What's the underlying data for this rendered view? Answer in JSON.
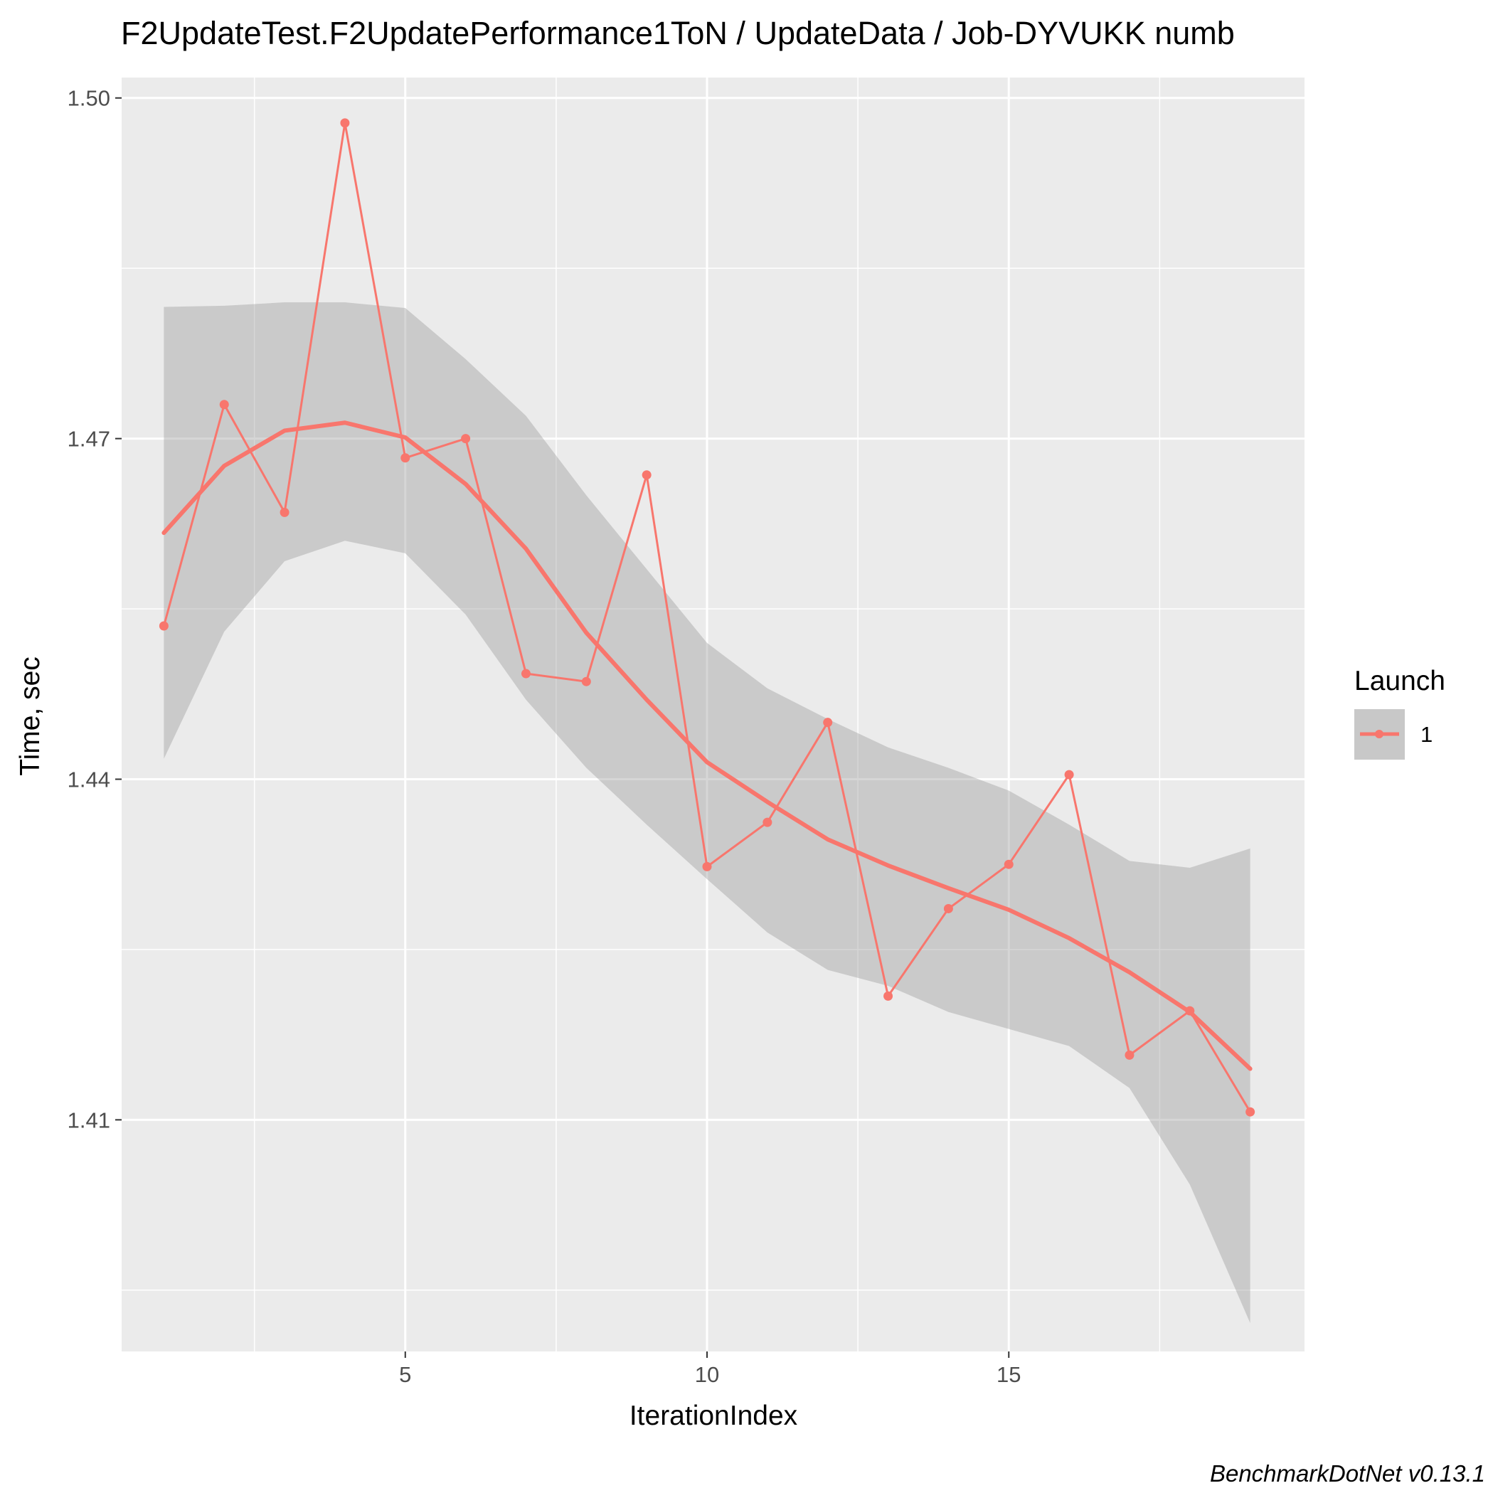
{
  "chart_data": {
    "type": "line",
    "title": "F2UpdateTest.F2UpdatePerformance1ToN / UpdateData / Job-DYVUKK numb",
    "xlabel": "IterationIndex",
    "ylabel": "Time, sec",
    "caption": "BenchmarkDotNet v0.13.1",
    "xlim": [
      0.3,
      19.9
    ],
    "ylim": [
      1.3896,
      1.5018
    ],
    "x_ticks": [
      5,
      10,
      15
    ],
    "x_tick_labels": [
      "5",
      "10",
      "15"
    ],
    "y_ticks": [
      1.41,
      1.44,
      1.47,
      1.5
    ],
    "y_tick_labels": [
      "1.41",
      "1.44",
      "1.47",
      "1.50"
    ],
    "grid": true,
    "legend": {
      "title": "Launch",
      "placement": "right",
      "entries": [
        "1"
      ]
    },
    "colors": {
      "series": "#f8766d",
      "band": "#c8c8c8",
      "panel": "#ebebeb",
      "grid": "#ffffff"
    },
    "series": [
      {
        "name": "1",
        "x": [
          1,
          2,
          3,
          4,
          5,
          6,
          7,
          8,
          9,
          10,
          11,
          12,
          13,
          14,
          15,
          16,
          17,
          18,
          19
        ],
        "values": [
          1.4535,
          1.473,
          1.4635,
          1.4978,
          1.4683,
          1.47,
          1.4493,
          1.4486,
          1.4668,
          1.4323,
          1.4362,
          1.445,
          1.4209,
          1.4286,
          1.4325,
          1.4404,
          1.4157,
          1.4196,
          1.4107
        ]
      }
    ],
    "smooth": {
      "x": [
        1,
        2,
        3,
        4,
        5,
        6,
        7,
        8,
        9,
        10,
        11,
        12,
        13,
        14,
        15,
        16,
        17,
        18,
        19
      ],
      "values": [
        1.4617,
        1.4676,
        1.4707,
        1.4714,
        1.4701,
        1.466,
        1.4603,
        1.4529,
        1.447,
        1.4415,
        1.438,
        1.4347,
        1.4324,
        1.4304,
        1.4285,
        1.426,
        1.423,
        1.4195,
        1.4145
      ],
      "lower": [
        1.4418,
        1.453,
        1.4592,
        1.461,
        1.4599,
        1.4545,
        1.447,
        1.441,
        1.436,
        1.4312,
        1.4265,
        1.4232,
        1.4218,
        1.4195,
        1.418,
        1.4165,
        1.4128,
        1.4043,
        1.3921
      ],
      "upper": [
        1.4816,
        1.4817,
        1.482,
        1.482,
        1.4815,
        1.477,
        1.472,
        1.465,
        1.4585,
        1.452,
        1.448,
        1.4453,
        1.4428,
        1.441,
        1.439,
        1.436,
        1.4328,
        1.4322,
        1.4339
      ]
    }
  }
}
